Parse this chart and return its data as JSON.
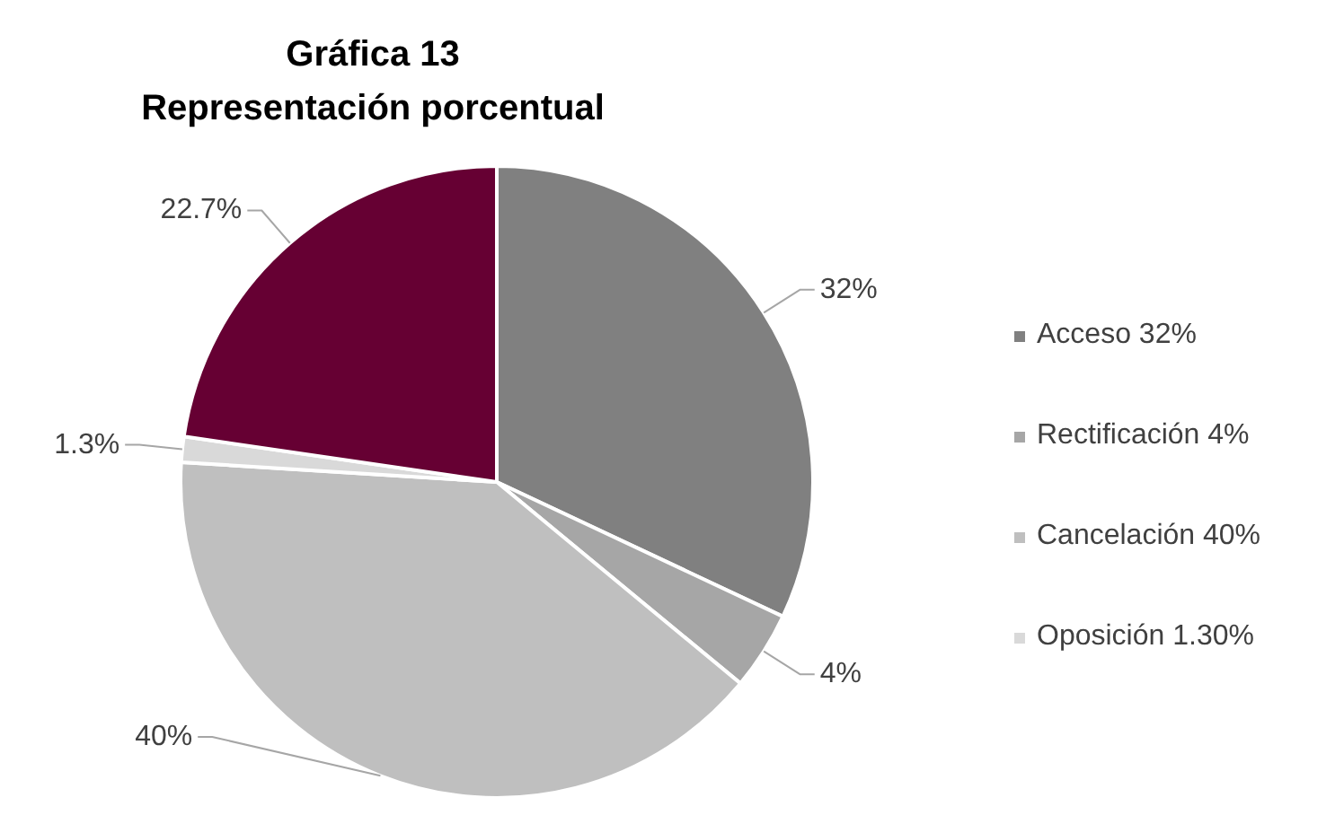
{
  "chart_data": {
    "type": "pie",
    "title": "Gráfica 13",
    "subtitle": "Representación porcentual",
    "categories": [
      "Acceso 32%",
      "Rectificación 4%",
      "Cancelación 40%",
      "Oposición 1.30%",
      null
    ],
    "values": [
      32,
      4,
      40,
      1.3,
      22.7
    ],
    "colors": [
      "#808080",
      "#a6a6a6",
      "#bfbfbf",
      "#d9d9d9",
      "#660033"
    ],
    "value_labels": [
      "32%",
      "4%",
      "40%",
      "1.3%",
      "22.7%"
    ],
    "legend": "right"
  }
}
